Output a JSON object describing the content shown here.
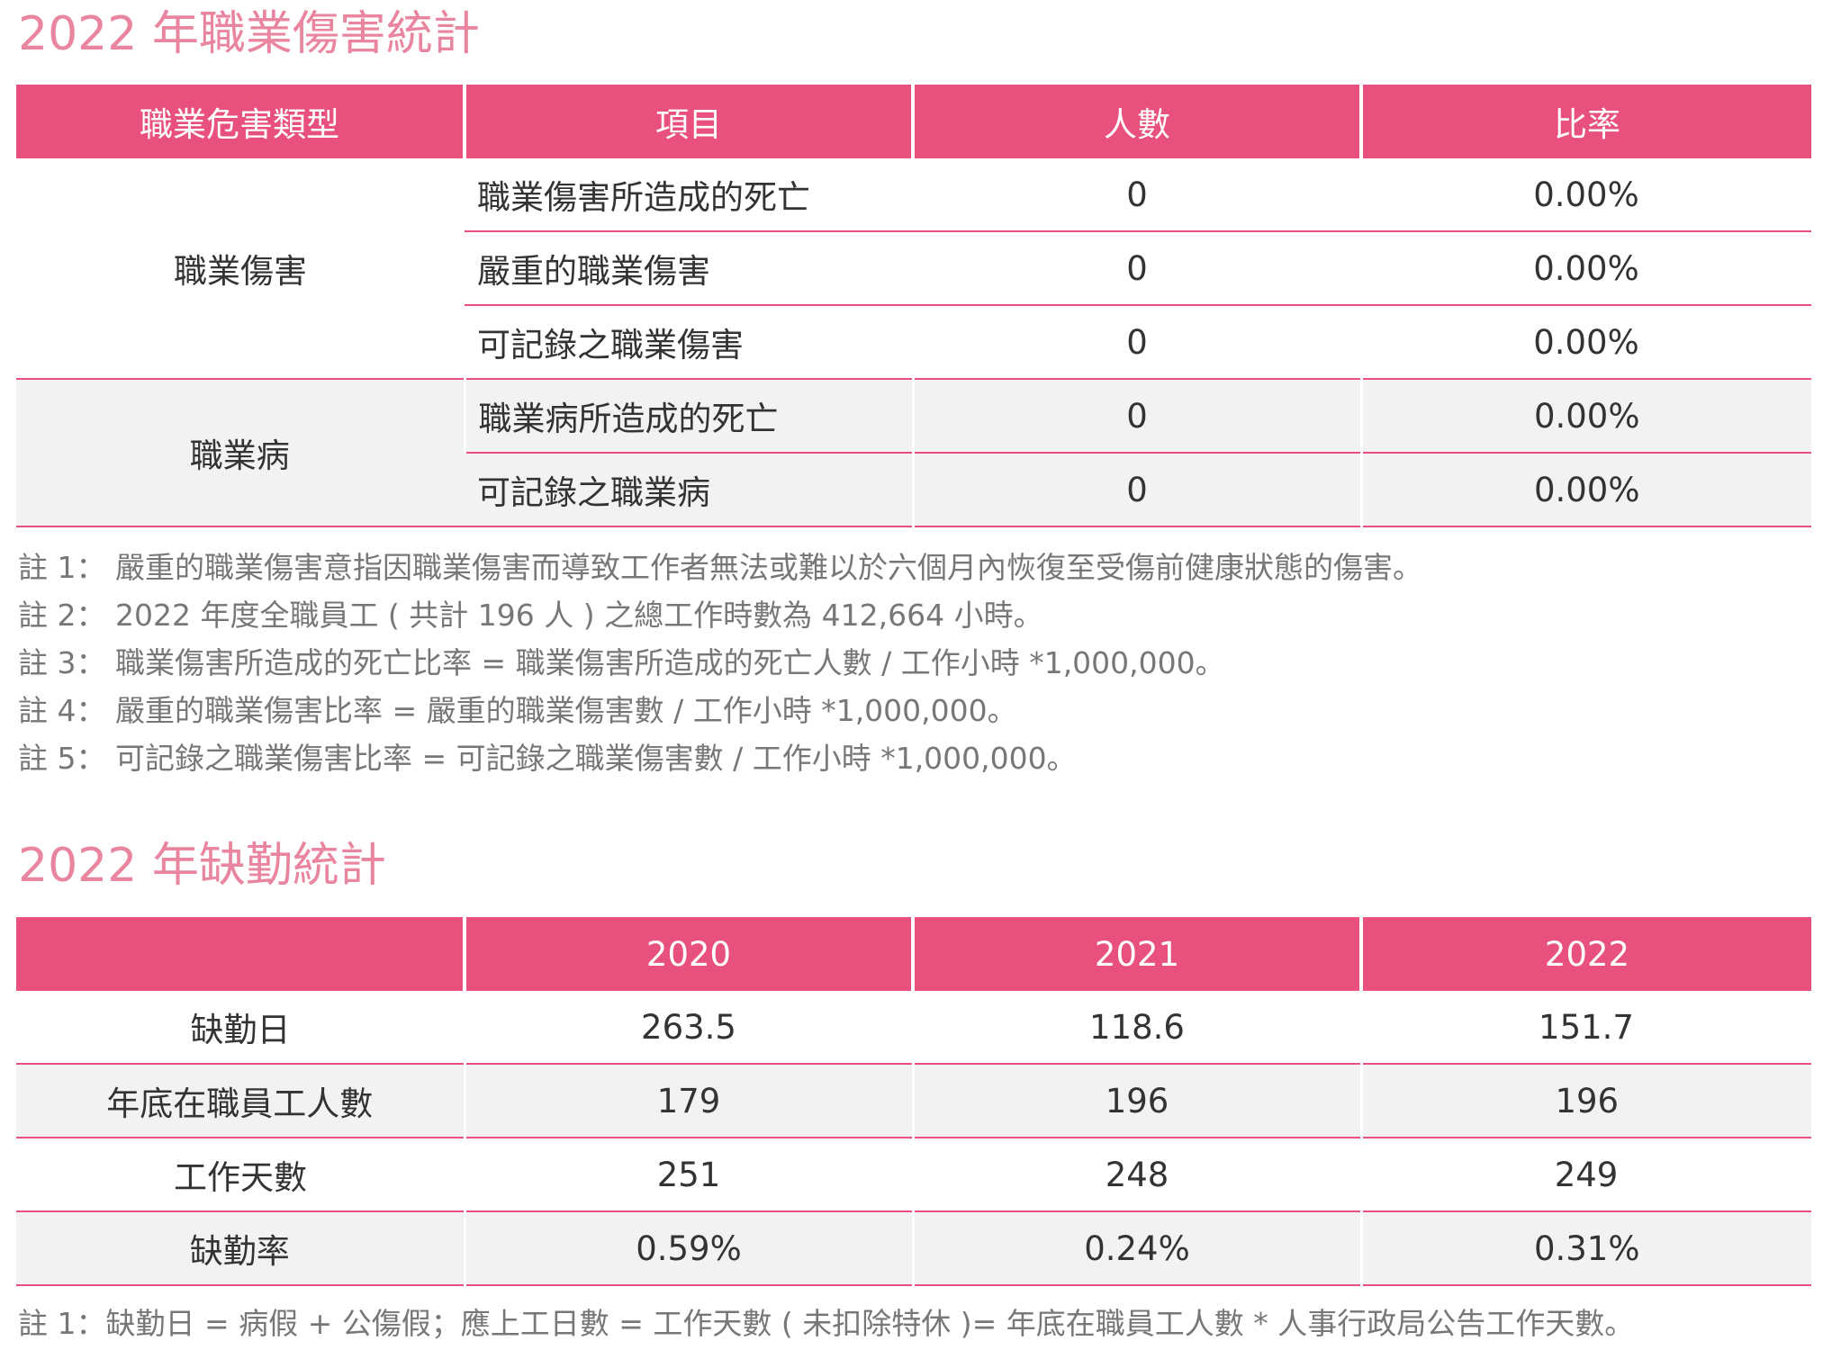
{
  "injury": {
    "title": "2022 年職業傷害統計",
    "headers": [
      "職業危害類型",
      "項目",
      "人數",
      "比率"
    ],
    "groups": [
      {
        "type": "職業傷害",
        "rows": [
          {
            "item": "職業傷害所造成的死亡",
            "count": "0",
            "rate": "0.00%"
          },
          {
            "item": "嚴重的職業傷害",
            "count": "0",
            "rate": "0.00%"
          },
          {
            "item": "可記錄之職業傷害",
            "count": "0",
            "rate": "0.00%"
          }
        ]
      },
      {
        "type": "職業病",
        "rows": [
          {
            "item": "職業病所造成的死亡",
            "count": "0",
            "rate": "0.00%"
          },
          {
            "item": "可記錄之職業病",
            "count": "0",
            "rate": "0.00%"
          }
        ]
      }
    ],
    "notes": [
      "註 1： 嚴重的職業傷害意指因職業傷害而導致工作者無法或難以於六個月內恢復至受傷前健康狀態的傷害。",
      "註 2： 2022 年度全職員工 ( 共計 196 人 ) 之總工作時數為 412,664 小時。",
      "註 3： 職業傷害所造成的死亡比率 = 職業傷害所造成的死亡人數 / 工作小時 *1,000,000。",
      "註 4： 嚴重的職業傷害比率 = 嚴重的職業傷害數 / 工作小時 *1,000,000。",
      "註 5： 可記錄之職業傷害比率 = 可記錄之職業傷害數 / 工作小時 *1,000,000。"
    ]
  },
  "absence": {
    "title": "2022 年缺勤統計",
    "headers": [
      "",
      "2020",
      "2021",
      "2022"
    ],
    "rows": [
      {
        "label": "缺勤日",
        "values": [
          "263.5",
          "118.6",
          "151.7"
        ]
      },
      {
        "label": "年底在職員工人數",
        "values": [
          "179",
          "196",
          "196"
        ]
      },
      {
        "label": "工作天數",
        "values": [
          "251",
          "248",
          "249"
        ]
      },
      {
        "label": "缺勤率",
        "values": [
          "0.59%",
          "0.24%",
          "0.31%"
        ]
      }
    ],
    "notes": [
      "註 1：缺勤日 = 病假 + 公傷假；應上工日數 = 工作天數 ( 未扣除特休 )= 年底在職員工人數 * 人事行政局公告工作天數。"
    ]
  }
}
